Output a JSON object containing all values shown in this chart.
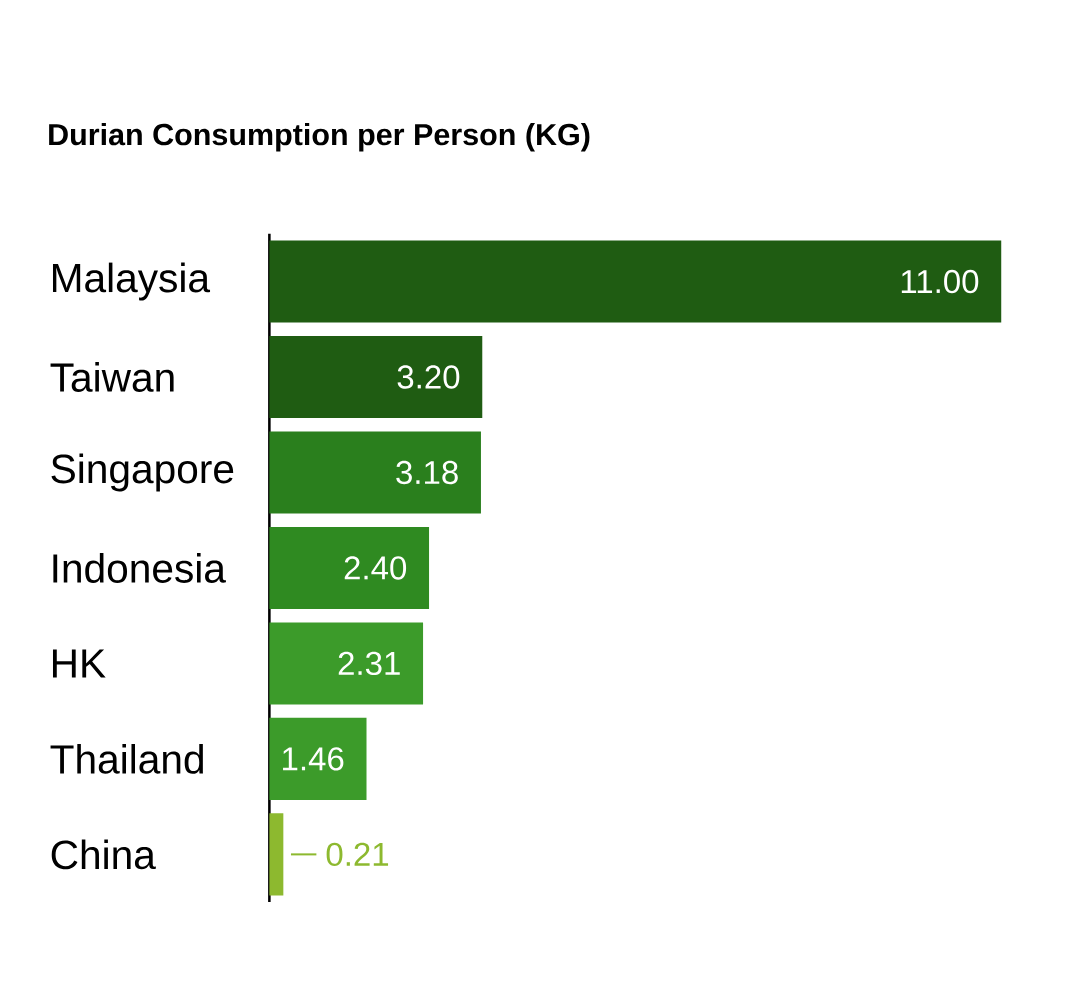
{
  "chart_data": {
    "type": "bar",
    "orientation": "horizontal",
    "title": "Durian Consumption per Person (KG)",
    "categories": [
      "Malaysia",
      "Taiwan",
      "Singapore",
      "Indonesia",
      "HK",
      "Thailand",
      "China"
    ],
    "values": [
      11.0,
      3.2,
      3.18,
      2.4,
      2.31,
      1.46,
      0.21
    ],
    "value_labels": [
      "11.00",
      "3.20",
      "3.18",
      "2.40",
      "2.31",
      "1.46",
      "0.21"
    ],
    "colors": [
      "#1f5c12",
      "#1f5c12",
      "#2a7f1d",
      "#2f8a21",
      "#3c9b2a",
      "#3c9b2a",
      "#8db92f"
    ]
  }
}
